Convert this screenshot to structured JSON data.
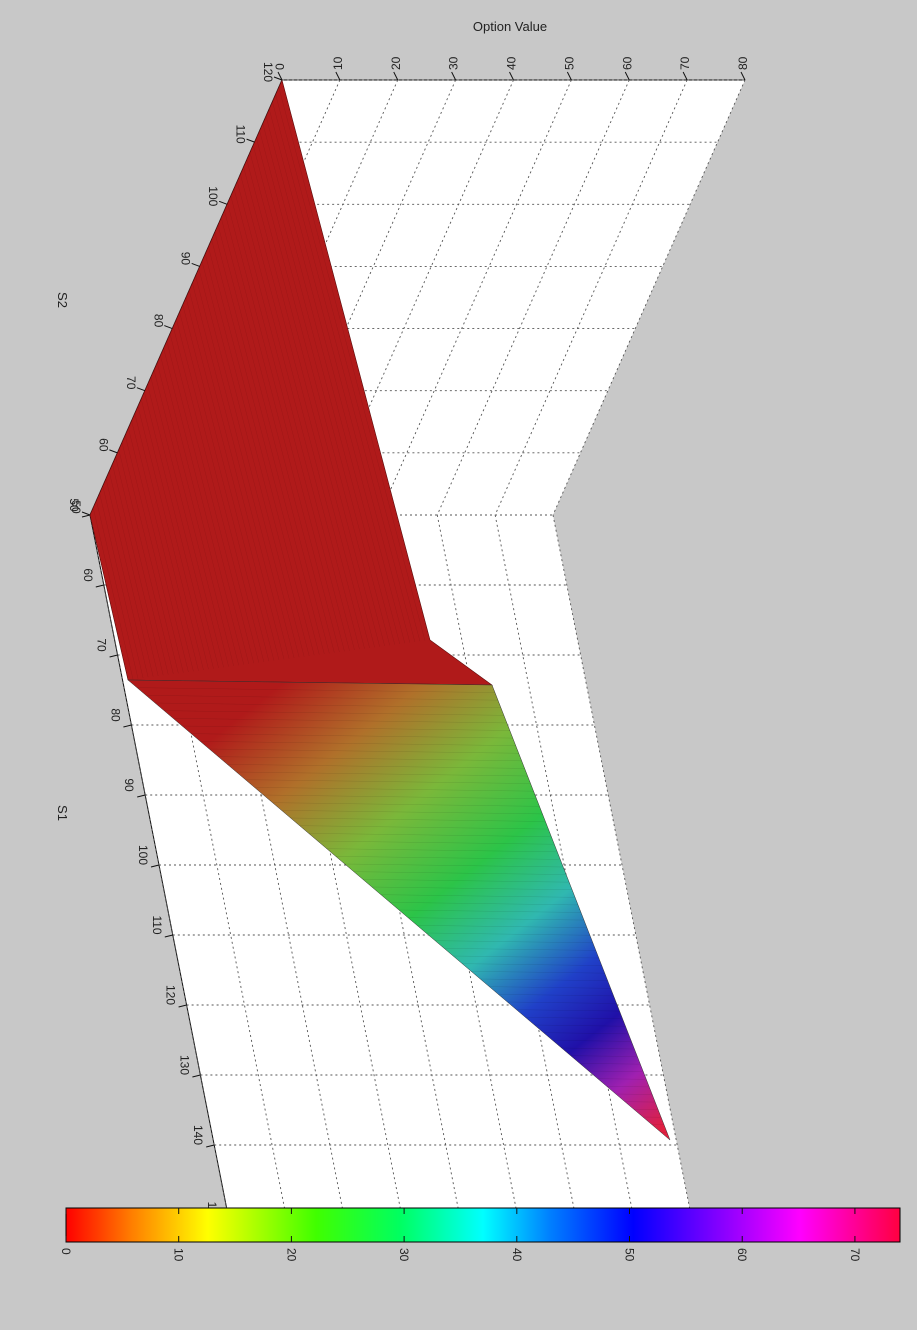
{
  "chart_data": {
    "type": "surface",
    "title": "",
    "zlabel": "Option Value",
    "xlabel": "S1",
    "ylabel": "S2",
    "z_ticks": [
      "0",
      "10",
      "20",
      "30",
      "40",
      "50",
      "60",
      "70",
      "80"
    ],
    "x_ticks": [
      "50",
      "60",
      "70",
      "80",
      "90",
      "100",
      "110",
      "120",
      "130",
      "140",
      "1"
    ],
    "y_ticks": [
      "50",
      "60",
      "70",
      "80",
      "90",
      "100",
      "110",
      "120"
    ],
    "zlim": [
      0,
      80
    ],
    "xlim": [
      50,
      150
    ],
    "ylim": [
      50,
      120
    ],
    "grid": true,
    "colormap": "hsv",
    "colorbar": {
      "ticks": [
        "0",
        "10",
        "20",
        "30",
        "40",
        "50",
        "60",
        "70"
      ],
      "range": [
        0,
        74
      ],
      "orientation": "horizontal",
      "placement": "bottom"
    },
    "surface_colors": {
      "plateau": "#b01a1a",
      "mid": "#3cc43c",
      "cyan": "#3ab0d0",
      "blue": "#1818b0",
      "magenta": "#c020a0",
      "tip": "#e02040"
    }
  }
}
